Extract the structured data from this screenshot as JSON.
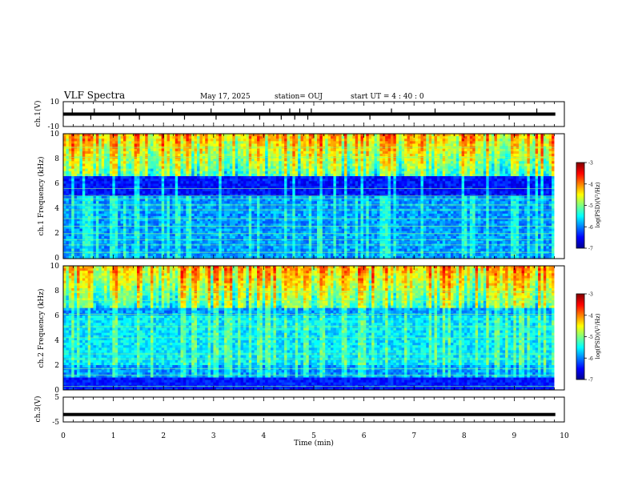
{
  "header": {
    "title": "VLF Spectra",
    "date": "May 17, 2025",
    "station": "station= OUJ",
    "start": "start  UT =   4 : 40 : 0"
  },
  "colorbar": {
    "label": "log(PSD)(V²/Hz)",
    "ticks": [
      "-3",
      "-4",
      "-5",
      "-6",
      "-7"
    ],
    "range": [
      -7,
      -3
    ],
    "colormap": "jet"
  },
  "chart_data": [
    {
      "type": "line",
      "panel": "ch1-waveform",
      "ylabel": "ch.1(V)",
      "yticks": [
        "10",
        "-10"
      ],
      "ylim": [
        -10,
        10
      ],
      "xlim": [
        0,
        10
      ],
      "baseline": 0,
      "spikes_min": [
        0.18,
        0.55,
        0.62,
        1.12,
        1.45,
        1.52,
        2.18,
        2.42,
        2.95,
        3.05,
        3.62,
        3.92,
        4.12,
        4.35,
        4.52,
        4.62,
        4.72,
        4.88,
        4.95,
        6.12,
        6.55,
        6.9,
        7.42,
        8.9,
        9.45
      ],
      "color": "#000000"
    },
    {
      "type": "heatmap",
      "panel": "ch1-spectrogram",
      "ylabel": "ch.1 Frequency (kHz)",
      "yticks": [
        "0",
        "2",
        "4",
        "6",
        "8",
        "10"
      ],
      "ylim": [
        0,
        10
      ],
      "xlim": [
        0,
        9.8
      ],
      "description_bands_khz": {
        "quiet_band": [
          5,
          6.5
        ],
        "noise_lines": [
          0.5,
          1.1,
          1.5,
          2.0,
          2.6,
          3.2,
          3.9,
          4.3,
          4.8,
          5.05,
          5.6,
          8.1,
          8.9
        ]
      },
      "value_unit": "log(PSD)(V²/Hz)"
    },
    {
      "type": "heatmap",
      "panel": "ch2-spectrogram",
      "ylabel": "ch.2 Frequency (kHz)",
      "yticks": [
        "0",
        "2",
        "4",
        "6",
        "8",
        "10"
      ],
      "ylim": [
        0,
        10
      ],
      "xlim": [
        0,
        9.8
      ],
      "description_bands_khz": {
        "quiet_band": [
          0.2,
          1.0
        ],
        "noise_lines": [
          0.3,
          1.2,
          1.7,
          2.5,
          2.9,
          4.2,
          5.1,
          6.1,
          7.2,
          7.9
        ]
      },
      "value_unit": "log(PSD)(V²/Hz)"
    },
    {
      "type": "line",
      "panel": "ch3-waveform",
      "ylabel": "ch.3(V)",
      "yticks": [
        "5",
        "-5"
      ],
      "ylim": [
        -5,
        5
      ],
      "xlim": [
        0,
        10
      ],
      "baseline": -2,
      "color": "#000000"
    }
  ],
  "xaxis": {
    "label": "Time  (min)",
    "ticks": [
      "0",
      "1",
      "2",
      "3",
      "4",
      "5",
      "6",
      "7",
      "8",
      "9",
      "10"
    ]
  }
}
